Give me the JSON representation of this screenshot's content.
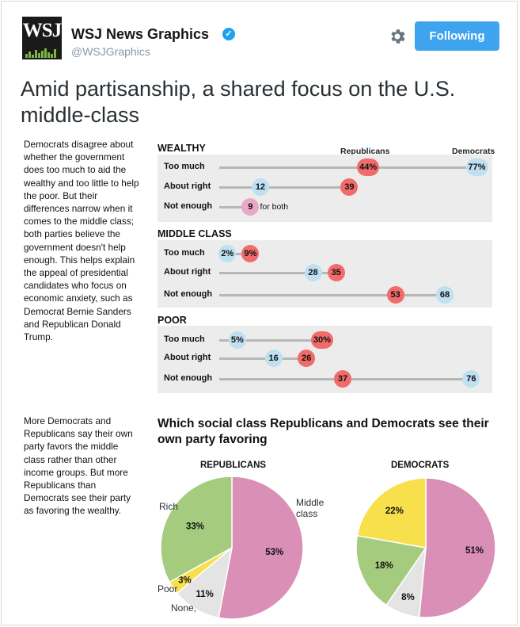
{
  "tweet": {
    "author_name": "WSJ News Graphics",
    "handle": "@WSJGraphics",
    "avatar_text": "WSJ",
    "follow_label": "Following",
    "headline": "Amid partisanship, a shared focus on the U.S. middle-class"
  },
  "graphic": {
    "intro": "Democrats disagree about whether the government does too much to aid the wealthy and too little to help the poor. But their differences narrow when it comes to the middle class; both parties believe the government doesn't help enough. This helps explain the appeal of presidential candidates who focus on economic anxiety, such as Democrat Bernie Sanders and Republican Donald Trump.",
    "col_republicans": "Republicans",
    "col_democrats": "Democrats",
    "for_both": "for both",
    "sections": [
      {
        "title": "WEALTHY",
        "rows": [
          {
            "label": "Too much",
            "rep": 44,
            "dem": 77,
            "rep_text": "44%",
            "dem_text": "77%"
          },
          {
            "label": "About right",
            "rep": 39,
            "dem": 12,
            "rep_text": "39",
            "dem_text": "12"
          },
          {
            "label": "Not enough",
            "rep": 9,
            "dem": 9,
            "rep_text": "9",
            "dem_text": "9"
          }
        ]
      },
      {
        "title": "MIDDLE CLASS",
        "rows": [
          {
            "label": "Too much",
            "rep": 9,
            "dem": 2,
            "rep_text": "9%",
            "dem_text": "2%"
          },
          {
            "label": "About right",
            "rep": 35,
            "dem": 28,
            "rep_text": "35",
            "dem_text": "28"
          },
          {
            "label": "Not enough",
            "rep": 53,
            "dem": 68,
            "rep_text": "53",
            "dem_text": "68"
          }
        ]
      },
      {
        "title": "POOR",
        "rows": [
          {
            "label": "Too much",
            "rep": 30,
            "dem": 5,
            "rep_text": "30%",
            "dem_text": "5%"
          },
          {
            "label": "About right",
            "rep": 26,
            "dem": 16,
            "rep_text": "26",
            "dem_text": "16"
          },
          {
            "label": "Not enough",
            "rep": 37,
            "dem": 76,
            "rep_text": "37",
            "dem_text": "76"
          }
        ]
      }
    ],
    "second_text": "More Democrats and Republicans say their own party favors the middle class rather than other income groups. But more Republicans than Democrats see their party as favoring the wealthy.",
    "pie_title": "Which social class Republicans and Democrats see their own party favoring",
    "pies": [
      {
        "name": "REPUBLICANS",
        "slices": [
          {
            "label": "Middle class",
            "value": 53,
            "text": "53%",
            "color": "#d98fb6"
          },
          {
            "label": "None, ...",
            "value": 11,
            "text": "11%",
            "color": "#e4e4e4"
          },
          {
            "label": "Poor",
            "value": 3,
            "text": "3%",
            "color": "#f7e04b"
          },
          {
            "label": "Rich",
            "value": 33,
            "text": "33%",
            "color": "#a5cc7e"
          }
        ],
        "outer_labels": {
          "middle": "Middle class",
          "middle_line1": "Middle",
          "middle_line2": "class",
          "rich": "Rich",
          "poor": "Poor",
          "none": "None,"
        }
      },
      {
        "name": "DEMOCRATS",
        "slices": [
          {
            "label": "Middle class",
            "value": 51,
            "text": "51%",
            "color": "#d98fb6"
          },
          {
            "label": "None",
            "value": 8,
            "text": "8%",
            "color": "#e4e4e4"
          },
          {
            "label": "Rich",
            "value": 18,
            "text": "18%",
            "color": "#a5cc7e"
          },
          {
            "label": "Poor",
            "value": 22,
            "text": "22%",
            "color": "#f7e04b"
          }
        ]
      }
    ]
  },
  "chart_data": [
    {
      "type": "scatter",
      "title": "",
      "categories": [
        "WEALTHY: Too much",
        "WEALTHY: About right",
        "WEALTHY: Not enough",
        "MIDDLE CLASS: Too much",
        "MIDDLE CLASS: About right",
        "MIDDLE CLASS: Not enough",
        "POOR: Too much",
        "POOR: About right",
        "POOR: Not enough"
      ],
      "series": [
        {
          "name": "Republicans",
          "values": [
            44,
            39,
            9,
            9,
            35,
            53,
            30,
            26,
            37
          ]
        },
        {
          "name": "Democrats",
          "values": [
            77,
            12,
            9,
            2,
            28,
            68,
            5,
            16,
            76
          ]
        }
      ]
    },
    {
      "type": "pie",
      "title": "REPUBLICANS",
      "categories": [
        "Middle class",
        "None",
        "Poor",
        "Rich"
      ],
      "values": [
        53,
        11,
        3,
        33
      ]
    },
    {
      "type": "pie",
      "title": "DEMOCRATS",
      "categories": [
        "Middle class",
        "None",
        "Rich",
        "Poor"
      ],
      "values": [
        51,
        8,
        18,
        22
      ]
    }
  ],
  "colors": {
    "republican": "#f26b6b",
    "democrat": "#bee0f0",
    "accent": "#3fa4f0"
  },
  "icons": {
    "verified": "verified-badge-icon",
    "gear": "gear-icon"
  }
}
